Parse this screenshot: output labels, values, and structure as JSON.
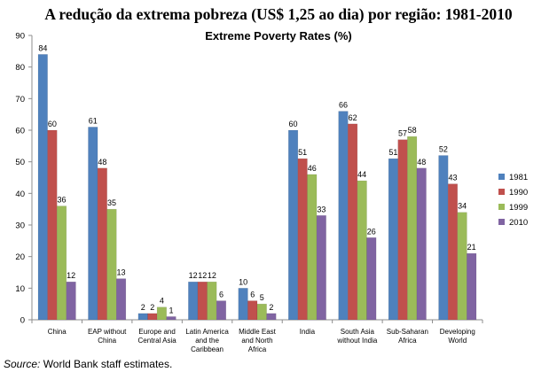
{
  "title": "A redução da extrema pobreza (US$ 1,25 ao dia) por região: 1981-2010",
  "source": {
    "label": "Source:",
    "text": " World Bank staff estimates."
  },
  "chart_data": {
    "type": "bar",
    "title": "Extreme Poverty Rates (%)",
    "ylim": [
      0,
      90
    ],
    "yticks": [
      0,
      10,
      20,
      30,
      40,
      50,
      60,
      70,
      80,
      90
    ],
    "grid": false,
    "legend_position": "right",
    "categories": [
      [
        "China"
      ],
      [
        "EAP without",
        "China"
      ],
      [
        "Europe and",
        "Central Asia"
      ],
      [
        "Latin America",
        "and the",
        "Caribbean"
      ],
      [
        "Middle East",
        "and North",
        "Africa"
      ],
      [
        "India"
      ],
      [
        "South Asia",
        "without India"
      ],
      [
        "Sub-Saharan",
        "Africa"
      ],
      [
        "Developing",
        "World"
      ]
    ],
    "series": [
      {
        "name": "1981",
        "color": "#4f81bd",
        "values": [
          84,
          61,
          2,
          12,
          10,
          60,
          66,
          51,
          52
        ]
      },
      {
        "name": "1990",
        "color": "#c0504d",
        "values": [
          60,
          48,
          2,
          12,
          6,
          51,
          62,
          57,
          43
        ]
      },
      {
        "name": "1999",
        "color": "#9bbb59",
        "values": [
          36,
          35,
          4,
          12,
          5,
          46,
          44,
          58,
          34
        ]
      },
      {
        "name": "2010",
        "color": "#8064a2",
        "values": [
          12,
          13,
          1,
          6,
          2,
          33,
          26,
          48,
          21
        ]
      }
    ]
  }
}
